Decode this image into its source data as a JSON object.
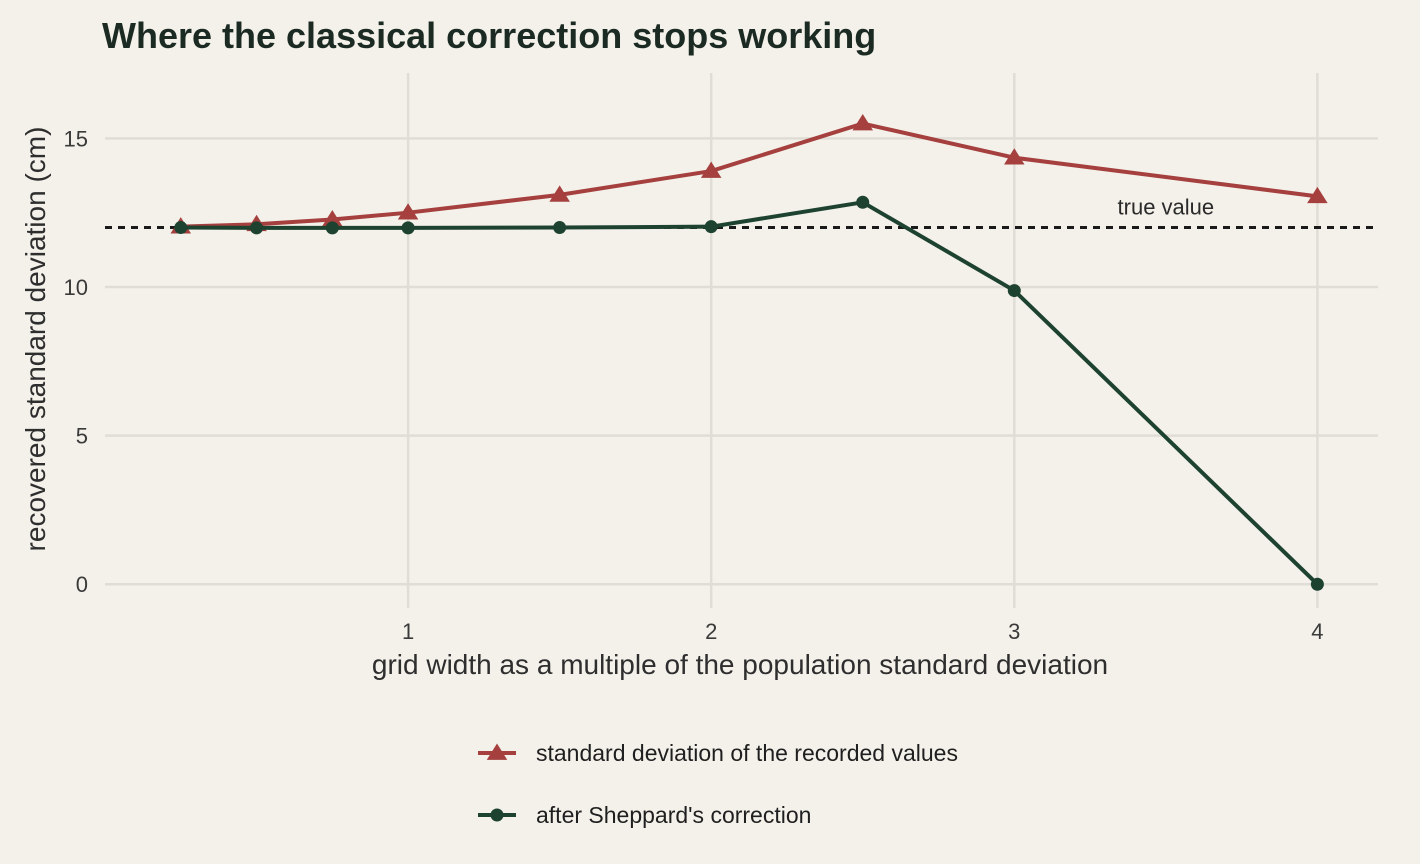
{
  "chart_data": {
    "type": "line",
    "title": "Where the classical correction stops working",
    "xlabel": "grid width as a multiple of the population standard deviation",
    "ylabel": "recovered standard deviation (cm)",
    "xlim": [
      0.0,
      4.2
    ],
    "ylim": [
      -0.8,
      17.2
    ],
    "x_ticks": [
      1,
      2,
      3,
      4
    ],
    "y_ticks": [
      0,
      5,
      10,
      15
    ],
    "grid": true,
    "legend_position": "bottom",
    "reference_line": {
      "y": 12,
      "label": "true value",
      "label_x": 3.5
    },
    "series": [
      {
        "name": "standard deviation of the recorded values",
        "color": "#a5403f",
        "marker": "triangle",
        "x": [
          0.25,
          0.5,
          0.75,
          1.0,
          1.5,
          2.0,
          2.5,
          3.0,
          4.0
        ],
        "y": [
          12.03,
          12.11,
          12.27,
          12.5,
          13.1,
          13.9,
          15.5,
          14.35,
          13.05
        ]
      },
      {
        "name": "after Sheppard's correction",
        "color": "#1e4230",
        "marker": "circle",
        "x": [
          0.25,
          0.5,
          0.75,
          1.0,
          1.5,
          2.0,
          2.5,
          3.0,
          4.0
        ],
        "y": [
          12.0,
          11.99,
          11.99,
          11.99,
          12.0,
          12.03,
          12.85,
          9.88,
          0.0
        ]
      }
    ]
  }
}
